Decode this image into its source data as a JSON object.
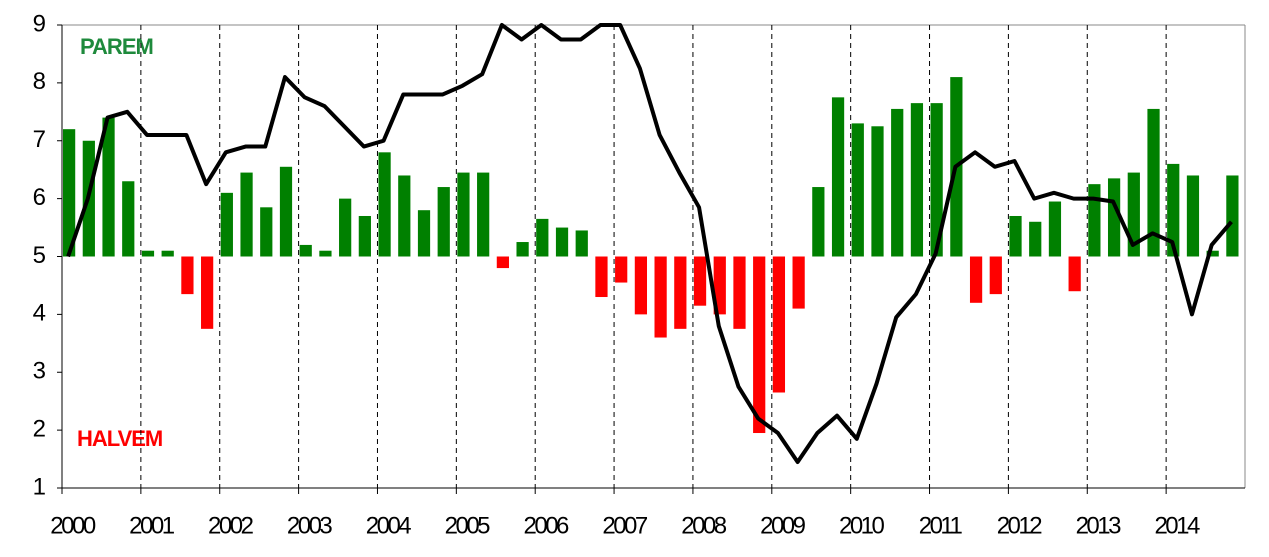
{
  "chart_data": {
    "type": "bar_line",
    "annotations": [
      {
        "text": "PAREM",
        "color": "#1e8a3c"
      },
      {
        "text": "HALVEM",
        "color": "#ff0000"
      }
    ],
    "categories": [
      "2000",
      null,
      null,
      null,
      "2001",
      null,
      null,
      null,
      "2002",
      null,
      null,
      null,
      "2003",
      null,
      null,
      null,
      "2004",
      null,
      null,
      null,
      "2005",
      null,
      null,
      null,
      "2006",
      null,
      null,
      null,
      "2007",
      null,
      null,
      null,
      "2008",
      null,
      null,
      null,
      "2009",
      null,
      null,
      null,
      "2010",
      null,
      null,
      null,
      "2011",
      null,
      null,
      null,
      "2012",
      null,
      null,
      null,
      "2013",
      null,
      null,
      null,
      "2014",
      null,
      null,
      null
    ],
    "series": [
      {
        "type": "bar",
        "color_above": "#008000",
        "color_below": "#ff0000",
        "values": [
          7.2,
          7.0,
          7.4,
          6.3,
          5.1,
          5.1,
          4.35,
          3.75,
          6.1,
          6.45,
          5.85,
          6.55,
          5.2,
          5.1,
          6.0,
          5.7,
          6.8,
          6.4,
          5.8,
          6.2,
          6.45,
          6.45,
          4.8,
          5.25,
          5.65,
          5.5,
          5.45,
          4.3,
          4.55,
          4.0,
          3.6,
          3.75,
          4.15,
          4.0,
          3.75,
          1.95,
          2.65,
          4.1,
          6.2,
          7.75,
          7.3,
          7.25,
          7.55,
          7.65,
          7.65,
          8.1,
          4.2,
          4.35,
          5.7,
          5.6,
          5.95,
          4.4,
          6.25,
          6.35,
          6.45,
          7.55,
          6.6,
          6.4,
          5.1,
          6.4
        ]
      },
      {
        "type": "line",
        "color": "#000000",
        "values": [
          5.0,
          6.0,
          7.4,
          7.5,
          7.1,
          7.1,
          7.1,
          6.25,
          6.8,
          6.9,
          6.9,
          8.1,
          7.75,
          7.6,
          7.25,
          6.9,
          7.0,
          7.8,
          7.8,
          7.8,
          7.95,
          8.15,
          9.0,
          8.75,
          9.0,
          8.75,
          8.75,
          9.0,
          9.0,
          8.25,
          7.1,
          6.45,
          5.85,
          3.8,
          2.75,
          2.2,
          1.95,
          1.45,
          1.95,
          2.25,
          1.85,
          2.8,
          3.95,
          4.35,
          5.05,
          6.55,
          6.8,
          6.55,
          6.65,
          6.0,
          6.1,
          6.0,
          6.0,
          5.95,
          5.2,
          5.4,
          5.25,
          4.0,
          5.2,
          5.6
        ]
      }
    ],
    "bar_base": 5,
    "ylim": [
      1,
      9
    ],
    "yticks": [
      1,
      2,
      3,
      4,
      5,
      6,
      7,
      8,
      9
    ]
  }
}
